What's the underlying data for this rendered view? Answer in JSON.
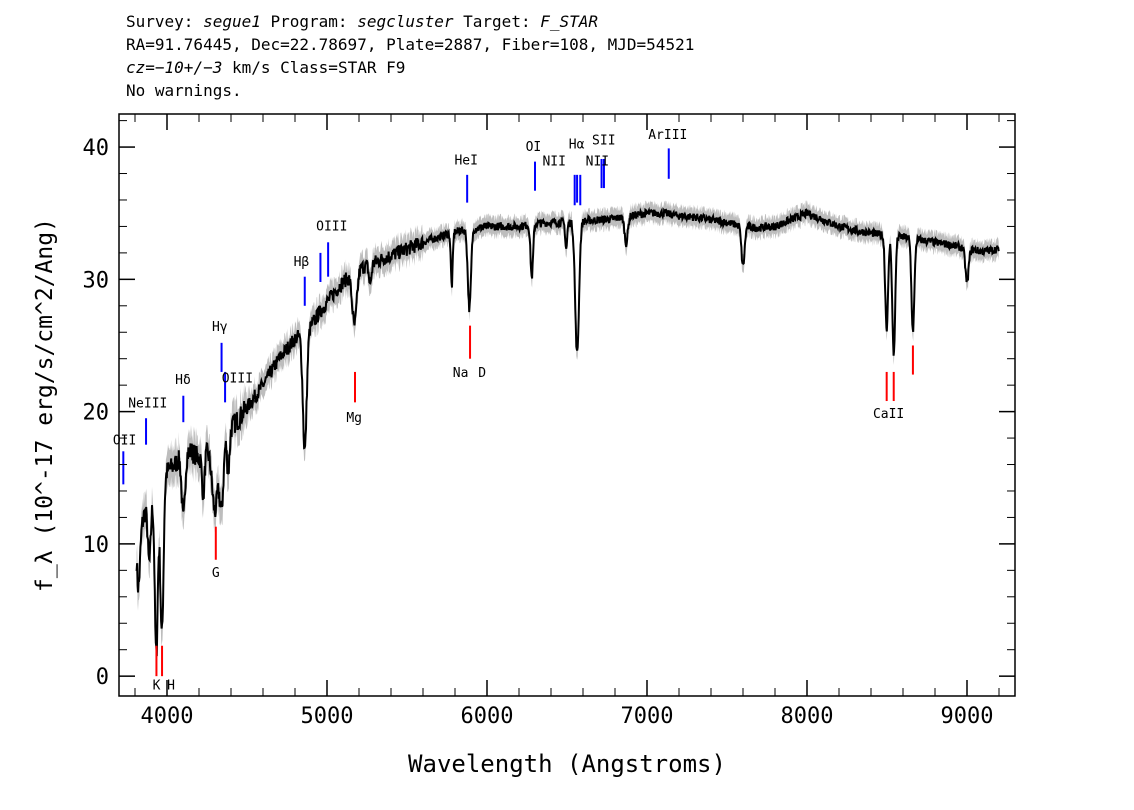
{
  "header": {
    "line1": {
      "survey_label": "Survey: ",
      "survey": "segue1",
      "program_label": " Program: ",
      "program": "segcluster",
      "target_label": " Target: ",
      "target": "F_STAR"
    },
    "line2": "RA=91.76445, Dec=22.78697, Plate=2887, Fiber=108, MJD=54521",
    "line3": {
      "cz_label": "cz=",
      "cz": "−10+/−3",
      "rest": " km/s Class=STAR F9"
    },
    "line4": "No warnings."
  },
  "colors": {
    "flux": "#000000",
    "error_band": "#bdbdbd",
    "emission_line": "#0000ff",
    "absorption_line": "#ff0000",
    "frame": "#000000"
  },
  "chart_data": {
    "type": "line",
    "xlabel": "Wavelength (Angstroms)",
    "ylabel": "f_λ (10^-17 erg/s/cm^2/Ang)",
    "xlim": [
      3700,
      9300
    ],
    "ylim": [
      -1.5,
      42.5
    ],
    "xticks": [
      4000,
      5000,
      6000,
      7000,
      8000,
      9000
    ],
    "yticks": [
      0,
      10,
      20,
      30,
      40
    ],
    "grid": false,
    "continuum": {
      "x": [
        3810,
        3850,
        3900,
        3950,
        4000,
        4050,
        4100,
        4150,
        4200,
        4250,
        4300,
        4350,
        4400,
        4450,
        4500,
        4600,
        4700,
        4800,
        4850,
        4900,
        5000,
        5100,
        5200,
        5300,
        5400,
        5500,
        5600,
        5700,
        5800,
        5900,
        6000,
        6100,
        6200,
        6300,
        6400,
        6500,
        6600,
        6700,
        6800,
        6900,
        7000,
        7100,
        7200,
        7300,
        7400,
        7500,
        7600,
        7700,
        7800,
        7900,
        8000,
        8100,
        8200,
        8300,
        8400,
        8500,
        8600,
        8700,
        8800,
        8900,
        9000,
        9100,
        9200
      ],
      "y": [
        13,
        12,
        14,
        15,
        15.5,
        16,
        16.8,
        17,
        16.5,
        17,
        17.5,
        18,
        18.8,
        19.5,
        20.3,
        22,
        24,
        25.5,
        26,
        26.5,
        28.3,
        29.8,
        30.8,
        31.3,
        31.8,
        32.3,
        32.8,
        33.2,
        33.6,
        33.8,
        34,
        34,
        34,
        34.2,
        34.3,
        34.3,
        34.4,
        34.5,
        34.6,
        34.8,
        35,
        35,
        34.8,
        34.7,
        34.5,
        34.3,
        34,
        33.9,
        34,
        34.5,
        35,
        34.5,
        34,
        33.7,
        33.5,
        33.3,
        33.2,
        33,
        32.8,
        32.6,
        32.3,
        32.1,
        32.3
      ]
    },
    "absorption_features": [
      {
        "center": 3820,
        "depth": 6,
        "width": 12
      },
      {
        "center": 3890,
        "depth": 5,
        "width": 10
      },
      {
        "center": 3933,
        "depth": 13,
        "width": 10
      },
      {
        "center": 3968,
        "depth": 12,
        "width": 10
      },
      {
        "center": 4102,
        "depth": 5,
        "width": 10
      },
      {
        "center": 4227,
        "depth": 3,
        "width": 8
      },
      {
        "center": 4300,
        "depth": 5,
        "width": 18
      },
      {
        "center": 4341,
        "depth": 5,
        "width": 12
      },
      {
        "center": 4383,
        "depth": 3,
        "width": 8
      },
      {
        "center": 4861,
        "depth": 9,
        "width": 12
      },
      {
        "center": 5172,
        "depth": 4,
        "width": 14
      },
      {
        "center": 5270,
        "depth": 1.5,
        "width": 8
      },
      {
        "center": 5890,
        "depth": 6,
        "width": 10
      },
      {
        "center": 5780,
        "depth": 4,
        "width": 6
      },
      {
        "center": 6280,
        "depth": 4,
        "width": 8
      },
      {
        "center": 6495,
        "depth": 2,
        "width": 6
      },
      {
        "center": 6563,
        "depth": 10,
        "width": 12
      },
      {
        "center": 6870,
        "depth": 2,
        "width": 10
      },
      {
        "center": 7600,
        "depth": 3,
        "width": 10
      },
      {
        "center": 8498,
        "depth": 7,
        "width": 9
      },
      {
        "center": 8542,
        "depth": 9,
        "width": 9
      },
      {
        "center": 8662,
        "depth": 7,
        "width": 9
      },
      {
        "center": 9000,
        "depth": 2.5,
        "width": 10
      }
    ],
    "emission_lines": [
      {
        "label": "OII",
        "x": 3727,
        "y0": 14.5,
        "y1": 17
      },
      {
        "label": "NeIII",
        "x": 3869,
        "y0": 17.5,
        "y1": 19.5
      },
      {
        "label": "Hδ",
        "x": 4102,
        "y0": 19.2,
        "y1": 21.2
      },
      {
        "label": "Hγ",
        "x": 4341,
        "y0": 23,
        "y1": 25.2
      },
      {
        "label": "OIII",
        "x": 4363,
        "y0": 20.7,
        "y1": 23
      },
      {
        "label": "Hβ",
        "x": 4861,
        "y0": 28,
        "y1": 30.2
      },
      {
        "label": "OIII",
        "x": 4959,
        "y0": 29.8,
        "y1": 32
      },
      {
        "label": "OIII",
        "x": 5007,
        "y0": 30.2,
        "y1": 32.8
      },
      {
        "label": "HeI",
        "x": 5876,
        "y0": 35.8,
        "y1": 37.9
      },
      {
        "label": "OI",
        "x": 6300,
        "y0": 36.7,
        "y1": 38.9
      },
      {
        "label": "NII",
        "x": 6548,
        "y0": 35.6,
        "y1": 37.9
      },
      {
        "label": "Hα",
        "x": 6563,
        "y0": 35.8,
        "y1": 37.9
      },
      {
        "label": "NII",
        "x": 6583,
        "y0": 35.6,
        "y1": 37.9
      },
      {
        "label": "SII",
        "x": 6716,
        "y0": 36.9,
        "y1": 39.1
      },
      {
        "label": "SII",
        "x": 6731,
        "y0": 36.9,
        "y1": 39.1
      },
      {
        "label": "ArIII",
        "x": 7136,
        "y0": 37.6,
        "y1": 39.9
      }
    ],
    "absorption_lines": [
      {
        "label": "K",
        "x": 3934,
        "y0": 0,
        "y1": 2.3
      },
      {
        "label": "H",
        "x": 3969,
        "y0": 0,
        "y1": 2.3
      },
      {
        "label": "G",
        "x": 4305,
        "y0": 8.8,
        "y1": 11.3
      },
      {
        "label": "Mg",
        "x": 5175,
        "y0": 20.7,
        "y1": 23
      },
      {
        "label": "Na",
        "x": 5894,
        "y0": 24,
        "y1": 26.5
      },
      {
        "label": "CaII",
        "x": 8498,
        "y0": 20.8,
        "y1": 23
      },
      {
        "label": "CaII",
        "x": 8542,
        "y0": 20.8,
        "y1": 23
      },
      {
        "label": "CaII",
        "x": 8662,
        "y0": 22.8,
        "y1": 25
      }
    ],
    "line_labels": [
      {
        "text": "OII",
        "x": 3735,
        "y": 17.5,
        "kind": "emission"
      },
      {
        "text": "NeIII",
        "x": 3880,
        "y": 20.3,
        "kind": "emission"
      },
      {
        "text": "Hδ",
        "x": 4100,
        "y": 22.1,
        "kind": "emission"
      },
      {
        "text": "Hγ",
        "x": 4330,
        "y": 26.1,
        "kind": "emission"
      },
      {
        "text": "OIII",
        "x": 4440,
        "y": 22.2,
        "kind": "emission"
      },
      {
        "text": "Hβ",
        "x": 4840,
        "y": 31.0,
        "kind": "emission"
      },
      {
        "text": "OIII",
        "x": 5030,
        "y": 33.7,
        "kind": "emission"
      },
      {
        "text": "HeI",
        "x": 5870,
        "y": 38.7,
        "kind": "emission"
      },
      {
        "text": "OI",
        "x": 6290,
        "y": 39.7,
        "kind": "emission"
      },
      {
        "text": "NII",
        "x": 6420,
        "y": 38.6,
        "kind": "emission"
      },
      {
        "text": "Hα",
        "x": 6560,
        "y": 39.9,
        "kind": "emission"
      },
      {
        "text": "NII",
        "x": 6690,
        "y": 38.6,
        "kind": "emission"
      },
      {
        "text": "SII",
        "x": 6730,
        "y": 40.2,
        "kind": "emission"
      },
      {
        "text": "ArIII",
        "x": 7130,
        "y": 40.6,
        "kind": "emission"
      },
      {
        "text": "K",
        "x": 3935,
        "y": -1.0,
        "kind": "absorption"
      },
      {
        "text": "H",
        "x": 4025,
        "y": -1.0,
        "kind": "absorption"
      },
      {
        "text": "G",
        "x": 4305,
        "y": 7.5,
        "kind": "absorption"
      },
      {
        "text": "Mg",
        "x": 5170,
        "y": 19.2,
        "kind": "absorption"
      },
      {
        "text": "Na",
        "x": 5835,
        "y": 22.6,
        "kind": "absorption"
      },
      {
        "text": "D",
        "x": 5970,
        "y": 22.6,
        "kind": "absorption"
      },
      {
        "text": "CaII",
        "x": 8510,
        "y": 19.5,
        "kind": "absorption"
      }
    ]
  }
}
